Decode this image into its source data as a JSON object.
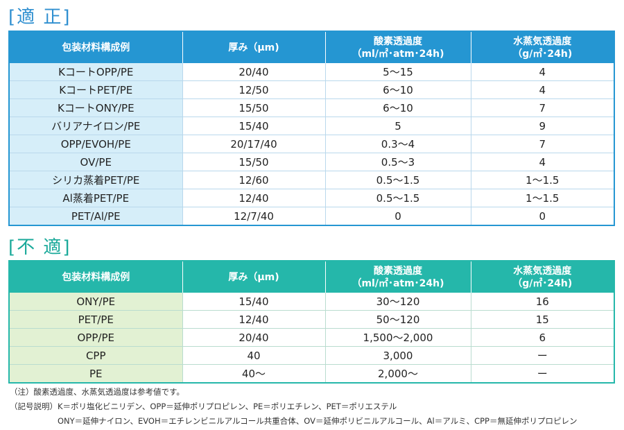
{
  "sections": {
    "suitable_title": "[適 正]",
    "unsuitable_title": "[不 適]"
  },
  "headers": {
    "material": "包装材料構成例",
    "thickness": "厚み（μm)",
    "oxygen_line1": "酸素透過度",
    "oxygen_line2": "（ml/㎡･atm･24h)",
    "vapor_line1": "水蒸気透過度",
    "vapor_line2": "（g/㎡･24h)"
  },
  "suitable_rows": [
    {
      "material": "KコートOPP/PE",
      "thickness": "20/40",
      "oxygen": "5～15",
      "vapor": "4"
    },
    {
      "material": "KコートPET/PE",
      "thickness": "12/50",
      "oxygen": "6～10",
      "vapor": "4"
    },
    {
      "material": "KコートONY/PE",
      "thickness": "15/50",
      "oxygen": "6～10",
      "vapor": "7"
    },
    {
      "material": "バリアナイロン/PE",
      "thickness": "15/40",
      "oxygen": "5",
      "vapor": "9"
    },
    {
      "material": "OPP/EVOH/PE",
      "thickness": "20/17/40",
      "oxygen": "0.3～4",
      "vapor": "7"
    },
    {
      "material": "OV/PE",
      "thickness": "15/50",
      "oxygen": "0.5～3",
      "vapor": "4"
    },
    {
      "material": "シリカ蒸着PET/PE",
      "thickness": "12/60",
      "oxygen": "0.5～1.5",
      "vapor": "1～1.5"
    },
    {
      "material": "Al蒸着PET/PE",
      "thickness": "12/40",
      "oxygen": "0.5～1.5",
      "vapor": "1～1.5"
    },
    {
      "material": "PET/Al/PE",
      "thickness": "12/7/40",
      "oxygen": "0",
      "vapor": "0"
    }
  ],
  "unsuitable_rows": [
    {
      "material": "ONY/PE",
      "thickness": "15/40",
      "oxygen": "30～120",
      "vapor": "16"
    },
    {
      "material": "PET/PE",
      "thickness": "12/40",
      "oxygen": "50～120",
      "vapor": "15"
    },
    {
      "material": "OPP/PE",
      "thickness": "20/40",
      "oxygen": "1,500～2,000",
      "vapor": "6"
    },
    {
      "material": "CPP",
      "thickness": "40",
      "oxygen": "3,000",
      "vapor": "ー"
    },
    {
      "material": "PE",
      "thickness": "40～",
      "oxygen": "2,000～",
      "vapor": "ー"
    }
  ],
  "notes": {
    "note1": "（注）酸素透過度、水蒸気透過度は参考値です。",
    "note2": "（記号説明）K＝ポリ塩化ビニリデン、OPP＝延伸ポリプロピレン、PE＝ポリエチレン、PET＝ポリエステル",
    "note3": "ONY＝延伸ナイロン、EVOH＝エチレンビニルアルコール共重合体、OV＝延伸ポリビニルアルコール、Al＝アルミ、CPP＝無延伸ポリプロピレン"
  }
}
